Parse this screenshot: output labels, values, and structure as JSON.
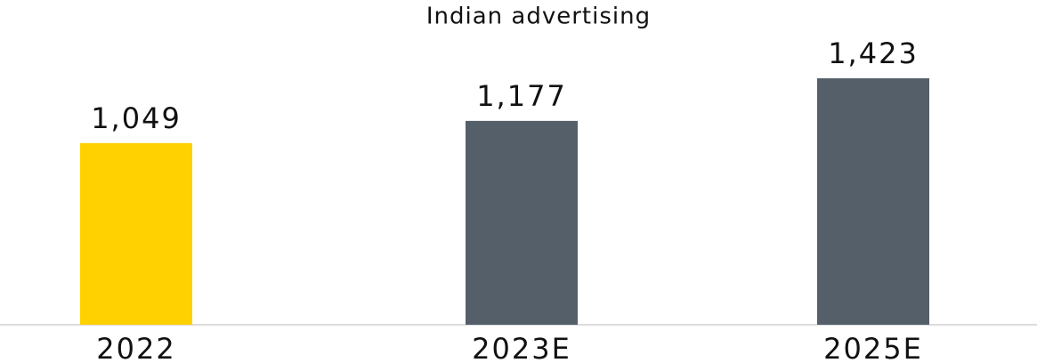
{
  "chart_data": {
    "type": "bar",
    "title": "Indian advertising",
    "categories": [
      "2022",
      "2023E",
      "2025E"
    ],
    "values": [
      1049,
      1177,
      1423
    ],
    "value_labels": [
      "1,049",
      "1,177",
      "1,423"
    ],
    "colors": [
      "#ffd100",
      "#555f6a",
      "#555f6a"
    ]
  }
}
